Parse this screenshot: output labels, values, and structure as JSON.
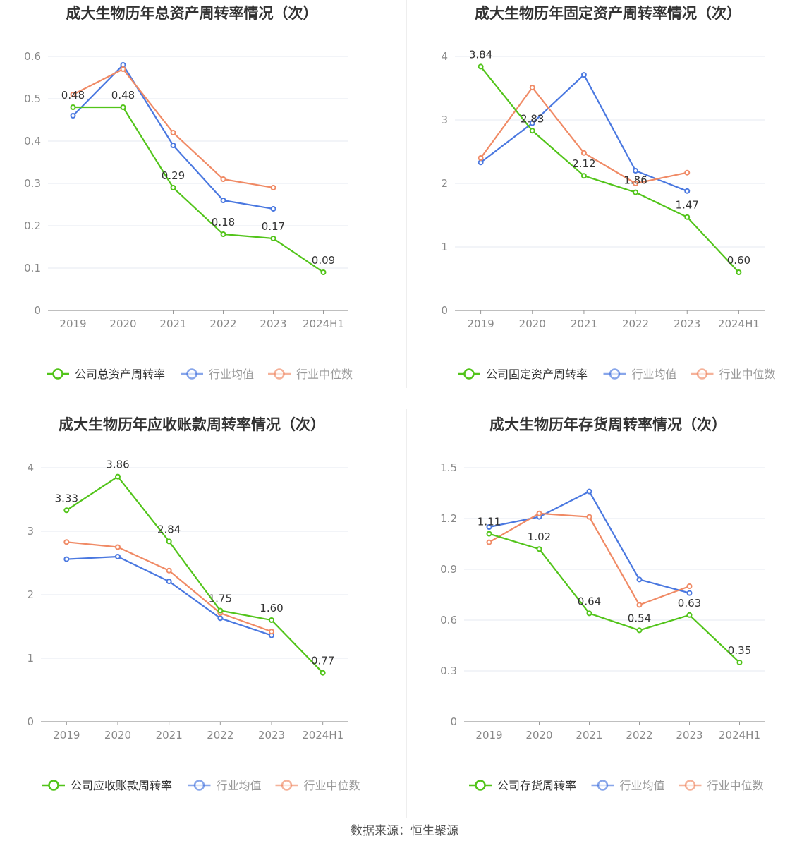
{
  "colors": {
    "company": "#52c41a",
    "avg": "#4a78e0",
    "median": "#f08a65",
    "grid": "#e6e8f0",
    "axis": "#888888",
    "text": "#333333"
  },
  "legend_labels": {
    "avg": "行业均值",
    "median": "行业中位数"
  },
  "source_text": "数据来源：恒生聚源",
  "chart_data": [
    {
      "type": "line",
      "title": "成大生物历年总资产周转率情况（次）",
      "categories": [
        "2019",
        "2020",
        "2021",
        "2022",
        "2023",
        "2024H1"
      ],
      "ylim": [
        0,
        0.6
      ],
      "yticks": [
        "0",
        "0.1",
        "0.2",
        "0.3",
        "0.4",
        "0.5",
        "0.6"
      ],
      "grid": true,
      "legend_position": "bottom",
      "series": [
        {
          "name": "公司总资产周转率",
          "key": "company",
          "values": [
            0.48,
            0.48,
            0.29,
            0.18,
            0.17,
            0.09
          ],
          "labels": [
            "0.48",
            "0.48",
            "0.29",
            "0.18",
            "0.17",
            "0.09"
          ]
        },
        {
          "name": "行业均值",
          "key": "avg",
          "values": [
            0.46,
            0.58,
            0.39,
            0.26,
            0.24,
            null
          ]
        },
        {
          "name": "行业中位数",
          "key": "median",
          "values": [
            0.51,
            0.57,
            0.42,
            0.31,
            0.29,
            null
          ]
        }
      ]
    },
    {
      "type": "line",
      "title": "成大生物历年固定资产周转率情况（次）",
      "categories": [
        "2019",
        "2020",
        "2021",
        "2022",
        "2023",
        "2024H1"
      ],
      "ylim": [
        0,
        4
      ],
      "yticks": [
        "0",
        "1",
        "2",
        "3",
        "4"
      ],
      "grid": true,
      "legend_position": "bottom",
      "series": [
        {
          "name": "公司固定资产周转率",
          "key": "company",
          "values": [
            3.84,
            2.83,
            2.12,
            1.86,
            1.47,
            0.6
          ],
          "labels": [
            "3.84",
            "2.83",
            "2.12",
            "1.86",
            "1.47",
            "0.60"
          ]
        },
        {
          "name": "行业均值",
          "key": "avg",
          "values": [
            2.33,
            2.95,
            3.71,
            2.2,
            1.88,
            null
          ]
        },
        {
          "name": "行业中位数",
          "key": "median",
          "values": [
            2.4,
            3.51,
            2.48,
            2.0,
            2.17,
            null
          ]
        }
      ]
    },
    {
      "type": "line",
      "title": "成大生物历年应收账款周转率情况（次）",
      "categories": [
        "2019",
        "2020",
        "2021",
        "2022",
        "2023",
        "2024H1"
      ],
      "ylim": [
        0,
        4
      ],
      "yticks": [
        "0",
        "1",
        "2",
        "3",
        "4"
      ],
      "grid": true,
      "legend_position": "bottom",
      "series": [
        {
          "name": "公司应收账款周转率",
          "key": "company",
          "values": [
            3.33,
            3.86,
            2.84,
            1.75,
            1.6,
            0.77
          ],
          "labels": [
            "3.33",
            "3.86",
            "2.84",
            "1.75",
            "1.60",
            "0.77"
          ]
        },
        {
          "name": "行业均值",
          "key": "avg",
          "values": [
            2.56,
            2.6,
            2.21,
            1.63,
            1.36,
            null
          ]
        },
        {
          "name": "行业中位数",
          "key": "median",
          "values": [
            2.83,
            2.75,
            2.38,
            1.71,
            1.42,
            null
          ]
        }
      ]
    },
    {
      "type": "line",
      "title": "成大生物历年存货周转率情况（次）",
      "categories": [
        "2019",
        "2020",
        "2021",
        "2022",
        "2023",
        "2024H1"
      ],
      "ylim": [
        0,
        1.5
      ],
      "yticks": [
        "0",
        "0.3",
        "0.6",
        "0.9",
        "1.2",
        "1.5"
      ],
      "grid": true,
      "legend_position": "bottom",
      "series": [
        {
          "name": "公司存货周转率",
          "key": "company",
          "values": [
            1.11,
            1.02,
            0.64,
            0.54,
            0.63,
            0.35
          ],
          "labels": [
            "1.11",
            "1.02",
            "0.64",
            "0.54",
            "0.63",
            "0.35"
          ]
        },
        {
          "name": "行业均值",
          "key": "avg",
          "values": [
            1.15,
            1.21,
            1.36,
            0.84,
            0.76,
            null
          ]
        },
        {
          "name": "行业中位数",
          "key": "median",
          "values": [
            1.06,
            1.23,
            1.21,
            0.69,
            0.8,
            null
          ]
        }
      ]
    }
  ]
}
